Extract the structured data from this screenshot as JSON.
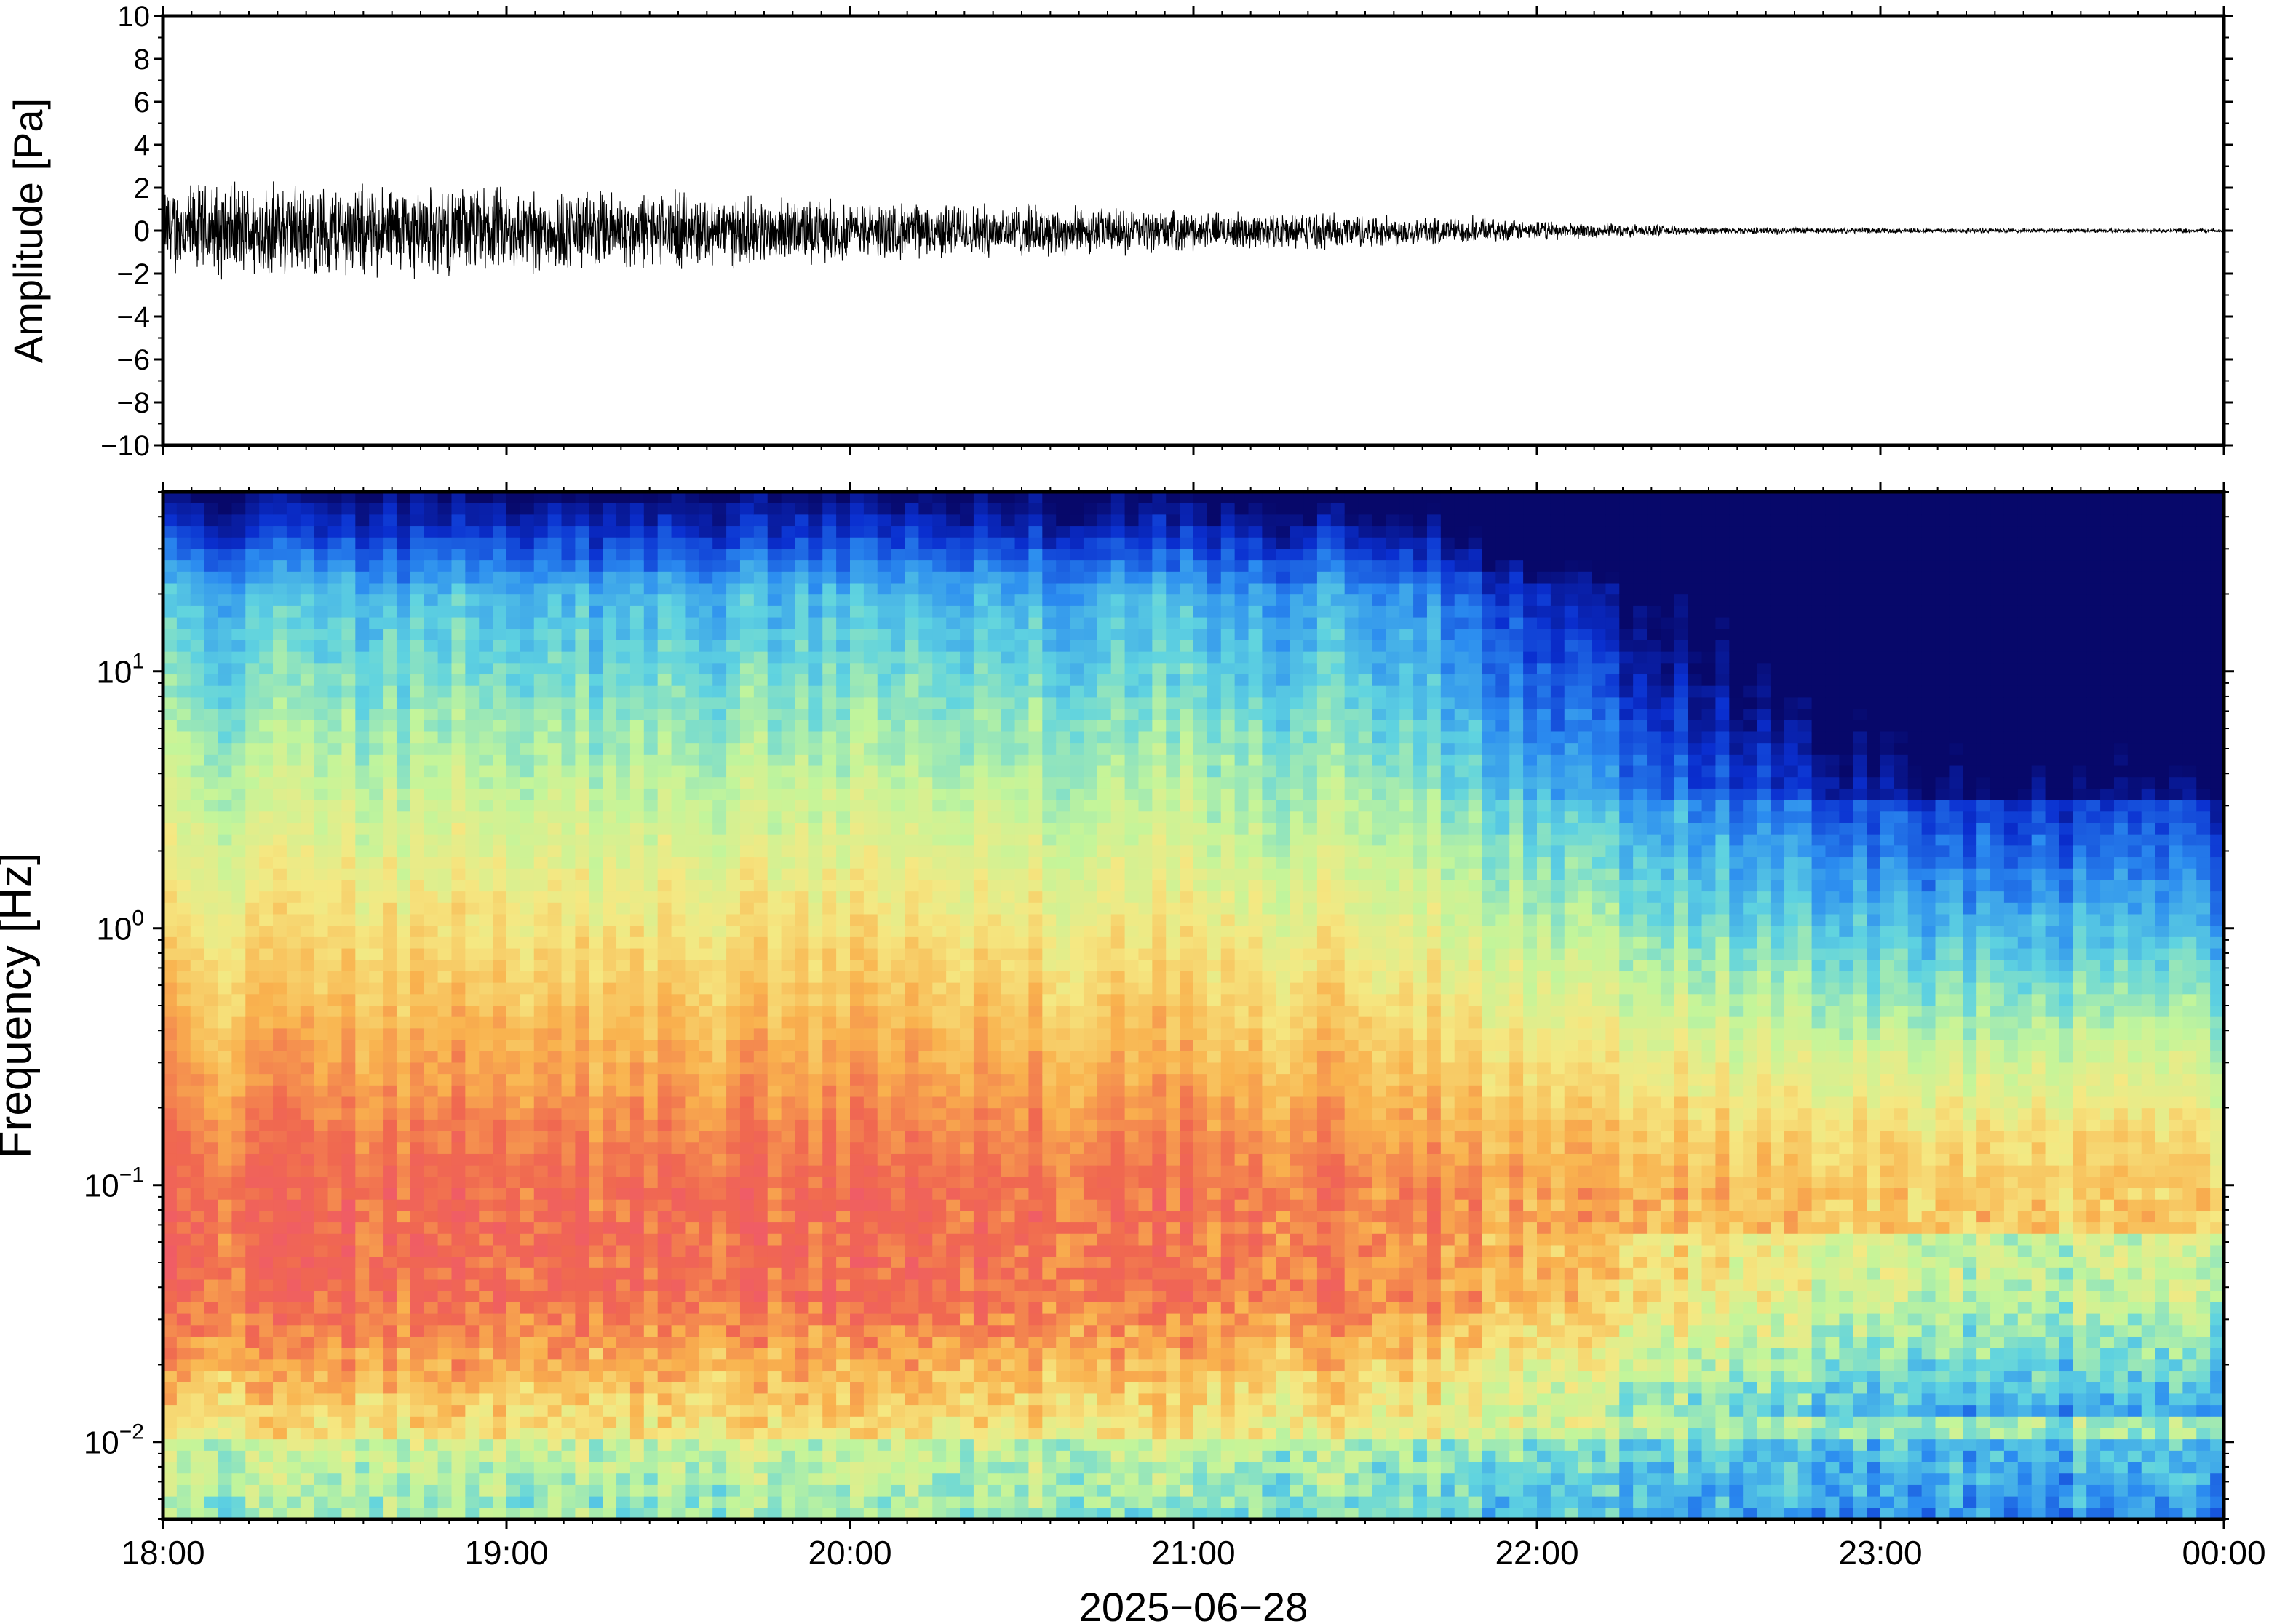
{
  "chart_data": [
    {
      "type": "line",
      "title": "",
      "ylabel": "Amplitude [Pa]",
      "xlabel": "",
      "ylim": [
        -10,
        10
      ],
      "yticks": [
        10,
        8,
        6,
        4,
        2,
        0,
        -2,
        -4,
        -6,
        -8,
        -10
      ],
      "ytick_labels": [
        "10",
        "8",
        "6",
        "4",
        "2",
        "0",
        "−2",
        "−4",
        "−6",
        "−8",
        "−10"
      ],
      "xlim": [
        "18:00",
        "00:00"
      ],
      "grid": false,
      "series": [
        {
          "color": "#000000",
          "envelope_time_hours": [
            18.0,
            18.5,
            19.0,
            19.5,
            20.0,
            20.5,
            21.0,
            21.5,
            22.0,
            22.5,
            23.0,
            23.5,
            24.0
          ],
          "envelope_amplitude_pa": [
            2.5,
            2.5,
            2.3,
            2.0,
            1.5,
            1.4,
            1.0,
            0.9,
            0.5,
            0.2,
            0.15,
            0.12,
            0.12
          ]
        }
      ]
    },
    {
      "type": "heatmap",
      "title": "",
      "ylabel": "Frequency [Hz]",
      "xlabel": "2025−06−28",
      "yscale": "log",
      "ylim": [
        0.005,
        50
      ],
      "yticks": [
        0.01,
        0.1,
        1,
        10
      ],
      "ytick_labels": [
        {
          "base": "10",
          "exp": "−2"
        },
        {
          "base": "10",
          "exp": "−1"
        },
        {
          "base": "10",
          "exp": "0"
        },
        {
          "base": "10",
          "exp": "1"
        }
      ],
      "xticks": [
        "18:00",
        "19:00",
        "20:00",
        "21:00",
        "22:00",
        "23:00",
        "00:00"
      ],
      "colormap": "jet",
      "colormap_stops": [
        "#07086a",
        "#0a2fd0",
        "#2b8cf0",
        "#5fd3e0",
        "#c3f59a",
        "#f5e882",
        "#f9b24e",
        "#f06850",
        "#f05a6a"
      ],
      "levels_note": "",
      "time_profile_hours": [
        18.0,
        19.0,
        20.0,
        21.0,
        22.0,
        22.5,
        23.0,
        23.5,
        24.0
      ]
    }
  ]
}
